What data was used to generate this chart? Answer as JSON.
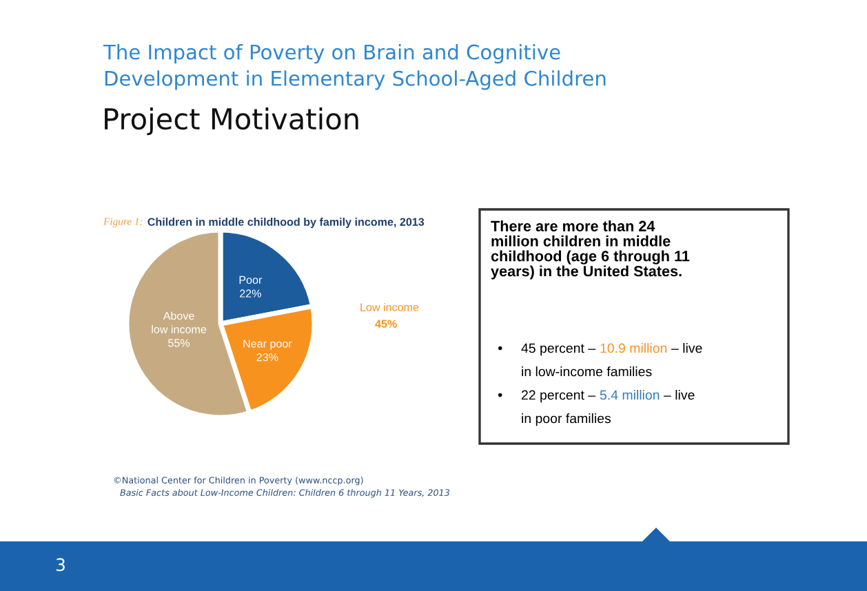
{
  "chart_data": {
    "type": "pie",
    "title": "Project Motivation",
    "subtitle": "The Impact of Poverty on Brain and Cognitive\nDevelopment in Elementary School-Aged Children",
    "categories": [
      "Poor",
      "Near poor",
      "Above\nlow income"
    ],
    "values": [
      22,
      23,
      55
    ],
    "value_labels": [
      "22%",
      "23%",
      "55%"
    ],
    "colors": [
      "#1d5c9c",
      "#f7921e",
      "#c6ab82"
    ],
    "legend": false,
    "annotations": [
      "Figure 1:",
      "Children in middle childhood by family income, 2013",
      "Low income",
      "45%",
      "There are more than 24\nmillion children in middle\nchildhood (age 6 through 11\nyears) in the United States.",
      "•",
      "45 percent –",
      "10.9 million",
      "– live",
      "in low-income families",
      "•",
      "22 percent –",
      "5.4 million",
      "– live",
      "in poor families",
      "©National Center for Children in Poverty (www.nccp.org)",
      "Basic Facts about Low-Income Children: Children 6 through 11 Years, 2013",
      "3"
    ]
  }
}
